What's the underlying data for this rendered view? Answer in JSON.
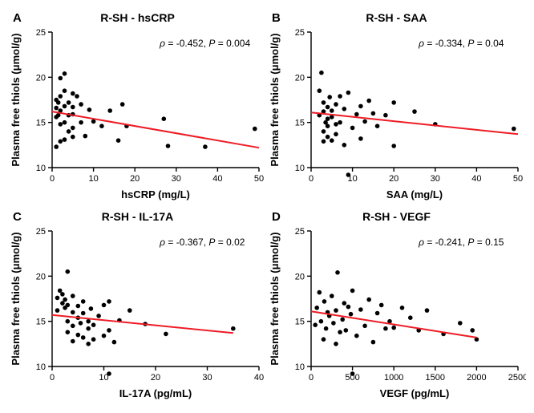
{
  "panels": [
    {
      "letter": "A",
      "title": "R-SH - hsCRP",
      "rho": "-0.452",
      "p": "0.004",
      "xlabel": "hsCRP (mg/L)",
      "ylabel": "Plasma free thiols (μmol/g)",
      "xlim": [
        0,
        50
      ],
      "xtick_step": 10,
      "ylim": [
        10,
        25
      ],
      "ytick_step": 5,
      "line": {
        "x1": 0,
        "y1": 16.2,
        "x2": 50,
        "y2": 12.2
      },
      "points": [
        [
          1,
          12.3
        ],
        [
          1,
          15.6
        ],
        [
          1,
          16.6
        ],
        [
          1,
          17.5
        ],
        [
          1.5,
          15.8
        ],
        [
          1.5,
          17.2
        ],
        [
          2,
          12.9
        ],
        [
          2,
          14.8
        ],
        [
          2,
          16.3
        ],
        [
          2,
          17.9
        ],
        [
          2,
          19.9
        ],
        [
          3,
          13.1
        ],
        [
          3,
          15.0
        ],
        [
          3,
          16.8
        ],
        [
          3,
          18.5
        ],
        [
          3,
          20.4
        ],
        [
          4,
          14.0
        ],
        [
          4,
          15.8
        ],
        [
          4,
          17.2
        ],
        [
          5,
          13.4
        ],
        [
          5,
          14.4
        ],
        [
          5,
          15.9
        ],
        [
          5,
          16.7
        ],
        [
          5,
          18.2
        ],
        [
          6,
          17.9
        ],
        [
          7,
          15.0
        ],
        [
          7,
          17.0
        ],
        [
          8,
          13.5
        ],
        [
          9,
          16.4
        ],
        [
          10,
          15.1
        ],
        [
          12,
          14.6
        ],
        [
          14,
          16.3
        ],
        [
          16,
          13.0
        ],
        [
          17,
          17.0
        ],
        [
          18,
          14.6
        ],
        [
          27,
          15.4
        ],
        [
          28,
          12.4
        ],
        [
          37,
          12.3
        ],
        [
          49,
          14.3
        ]
      ]
    },
    {
      "letter": "B",
      "title": "R-SH - SAA",
      "rho": "-0.334",
      "p": "0.04",
      "xlabel": "SAA (mg/L)",
      "ylabel": "Plasma free thiols (μmol/g)",
      "xlim": [
        0,
        50
      ],
      "xtick_step": 10,
      "ylim": [
        10,
        25
      ],
      "ytick_step": 5,
      "line": {
        "x1": 0,
        "y1": 16.1,
        "x2": 50,
        "y2": 13.7
      },
      "points": [
        [
          2,
          18.5
        ],
        [
          2,
          15.8
        ],
        [
          2.5,
          20.5
        ],
        [
          3,
          12.9
        ],
        [
          3,
          14.0
        ],
        [
          3,
          16.2
        ],
        [
          3,
          17.2
        ],
        [
          3.5,
          15.0
        ],
        [
          4,
          13.4
        ],
        [
          4,
          14.6
        ],
        [
          4,
          15.4
        ],
        [
          4,
          16.7
        ],
        [
          4.5,
          17.8
        ],
        [
          5,
          13.0
        ],
        [
          5,
          15.6
        ],
        [
          5,
          16.3
        ],
        [
          6,
          13.7
        ],
        [
          6,
          14.8
        ],
        [
          6,
          17.0
        ],
        [
          7,
          15.0
        ],
        [
          7,
          17.9
        ],
        [
          8,
          12.5
        ],
        [
          8,
          16.5
        ],
        [
          9,
          18.3
        ],
        [
          10,
          14.4
        ],
        [
          11,
          15.9
        ],
        [
          12,
          13.2
        ],
        [
          12,
          16.8
        ],
        [
          13,
          15.1
        ],
        [
          14,
          17.4
        ],
        [
          15,
          16.0
        ],
        [
          16,
          14.6
        ],
        [
          18,
          15.8
        ],
        [
          20,
          12.4
        ],
        [
          20,
          17.2
        ],
        [
          25,
          16.2
        ],
        [
          30,
          14.8
        ],
        [
          49,
          14.3
        ],
        [
          9,
          9.2
        ]
      ]
    },
    {
      "letter": "C",
      "title": "R-SH - IL-17A",
      "rho": "-0.367",
      "p": "0.02",
      "xlabel": "IL-17A (pg/mL)",
      "ylabel": "Plasma free thiols (μmol/g)",
      "xlim": [
        0,
        40
      ],
      "xtick_step": 10,
      "ylim": [
        10,
        25
      ],
      "ytick_step": 5,
      "line": {
        "x1": 0,
        "y1": 15.7,
        "x2": 35,
        "y2": 13.7
      },
      "points": [
        [
          1,
          16.2
        ],
        [
          1,
          17.6
        ],
        [
          1.5,
          18.4
        ],
        [
          2,
          17.0
        ],
        [
          2,
          18.0
        ],
        [
          2.5,
          16.5
        ],
        [
          2.5,
          17.4
        ],
        [
          3,
          13.8
        ],
        [
          3,
          15.0
        ],
        [
          3,
          16.8
        ],
        [
          3,
          20.5
        ],
        [
          4,
          12.8
        ],
        [
          4,
          14.5
        ],
        [
          4,
          16.0
        ],
        [
          4,
          17.8
        ],
        [
          5,
          13.5
        ],
        [
          5,
          15.4
        ],
        [
          5,
          16.7
        ],
        [
          5.5,
          14.8
        ],
        [
          6,
          13.2
        ],
        [
          6,
          15.9
        ],
        [
          6,
          17.2
        ],
        [
          7,
          12.5
        ],
        [
          7,
          14.2
        ],
        [
          7,
          15.0
        ],
        [
          7.5,
          16.4
        ],
        [
          8,
          13.0
        ],
        [
          8,
          14.6
        ],
        [
          9,
          15.6
        ],
        [
          10,
          13.4
        ],
        [
          10,
          16.8
        ],
        [
          11,
          14.0
        ],
        [
          11,
          17.2
        ],
        [
          12,
          12.7
        ],
        [
          13,
          15.1
        ],
        [
          15,
          16.2
        ],
        [
          18,
          14.7
        ],
        [
          22,
          13.6
        ],
        [
          35,
          14.2
        ],
        [
          11,
          9.2
        ]
      ]
    },
    {
      "letter": "D",
      "title": "R-SH - VEGF",
      "rho": "-0.241",
      "p": "0.15",
      "xlabel": "VEGF (pg/mL)",
      "ylabel": "Plasma free thiols (μmol/g)",
      "xlim": [
        0,
        2500
      ],
      "xtick_step": 500,
      "ylim": [
        10,
        25
      ],
      "ytick_step": 5,
      "line": {
        "x1": 0,
        "y1": 16.1,
        "x2": 2000,
        "y2": 13.2
      },
      "points": [
        [
          50,
          14.6
        ],
        [
          70,
          16.5
        ],
        [
          100,
          18.2
        ],
        [
          120,
          15.0
        ],
        [
          150,
          13.0
        ],
        [
          160,
          17.2
        ],
        [
          180,
          14.2
        ],
        [
          200,
          16.0
        ],
        [
          220,
          15.6
        ],
        [
          250,
          17.8
        ],
        [
          270,
          14.8
        ],
        [
          300,
          12.5
        ],
        [
          300,
          16.2
        ],
        [
          320,
          20.4
        ],
        [
          350,
          13.8
        ],
        [
          380,
          15.2
        ],
        [
          400,
          17.0
        ],
        [
          420,
          14.0
        ],
        [
          450,
          16.6
        ],
        [
          480,
          15.8
        ],
        [
          500,
          18.4
        ],
        [
          550,
          13.4
        ],
        [
          600,
          16.3
        ],
        [
          650,
          14.5
        ],
        [
          700,
          17.4
        ],
        [
          750,
          12.7
        ],
        [
          800,
          15.9
        ],
        [
          850,
          16.8
        ],
        [
          900,
          14.2
        ],
        [
          950,
          15.0
        ],
        [
          1000,
          14.3
        ],
        [
          1100,
          16.5
        ],
        [
          1200,
          15.4
        ],
        [
          1300,
          14.0
        ],
        [
          1400,
          16.2
        ],
        [
          1600,
          13.6
        ],
        [
          1800,
          14.8
        ],
        [
          1950,
          14.0
        ],
        [
          2000,
          13.0
        ],
        [
          500,
          9.2
        ]
      ]
    }
  ],
  "style": {
    "point_color": "#000000",
    "point_radius": 2.8,
    "line_color": "#ee1c25",
    "line_width": 2,
    "axis_color": "#000000",
    "axis_width": 1.4,
    "tick_len": 5,
    "label_fontsize": 13,
    "tick_fontsize": 11,
    "stats_fontsize": 12
  }
}
